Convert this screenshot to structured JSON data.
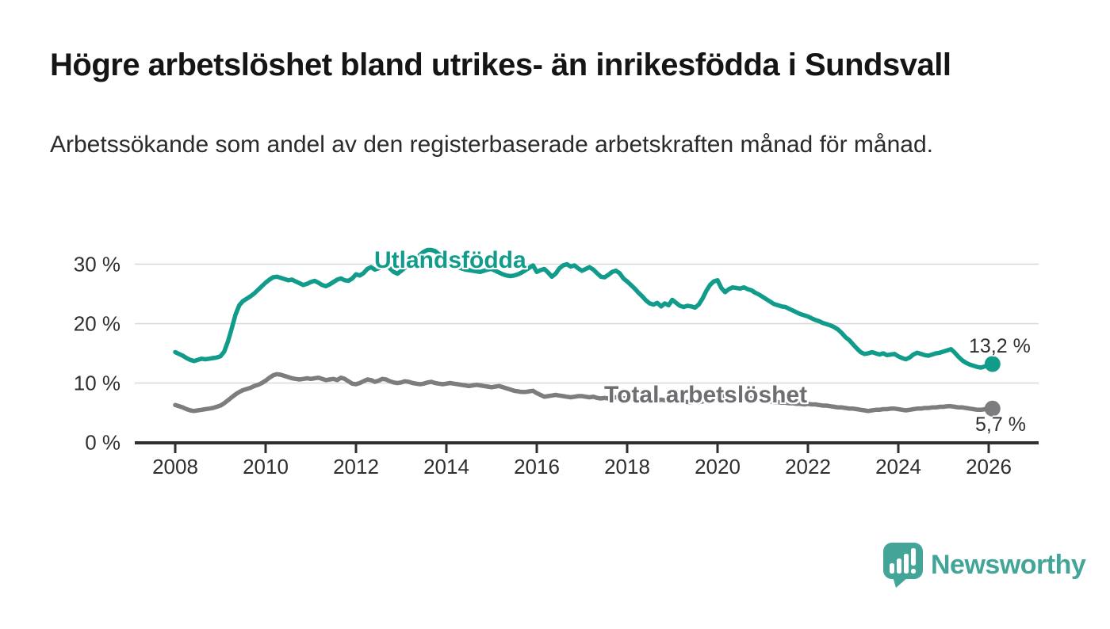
{
  "header": {
    "title": "Högre arbetslöshet bland utrikes- än inrikesfödda i Sundsvall",
    "subtitle": "Arbetssökande som andel av den registerbaserade arbetskraften månad för månad."
  },
  "footer": {
    "brand": "Newsworthy"
  },
  "colors": {
    "accent_teal": "#119b8b",
    "series_gray": "#7d7d80",
    "label_gray": "#6d6d72",
    "grid": "#d8d8d8",
    "axis": "#2f2f2f",
    "axis_text": "#2f2f2f",
    "logo_teal": "#42a597"
  },
  "chart_data": {
    "type": "line",
    "title": "Högre arbetslöshet bland utrikes- än inrikesfödda i Sundsvall",
    "subtitle": "Arbetssökande som andel av den registerbaserade arbetskraften månad för månad.",
    "x_unit": "year-month",
    "x_start_year": 2008,
    "points_per_year": 12,
    "grid": true,
    "legend_position": "inline-labels",
    "x_axis": {
      "ticks": [
        2008,
        2010,
        2012,
        2014,
        2016,
        2018,
        2020,
        2022,
        2024,
        2026
      ]
    },
    "y_axis": {
      "ticks": [
        0,
        10,
        20,
        30
      ],
      "suffix": " %",
      "range": [
        0,
        33.5
      ]
    },
    "series": [
      {
        "name": "Utlandsfödda",
        "color": "#119b8b",
        "end_label": "13,2 %",
        "end_value": 13.2,
        "values": [
          15.2,
          14.9,
          14.6,
          14.2,
          13.9,
          13.7,
          13.9,
          14.1,
          14.0,
          14.1,
          14.2,
          14.3,
          14.5,
          15.3,
          17.0,
          19.2,
          21.5,
          23.1,
          23.8,
          24.2,
          24.6,
          25.1,
          25.7,
          26.3,
          26.9,
          27.4,
          27.8,
          27.9,
          27.7,
          27.5,
          27.3,
          27.4,
          27.1,
          26.8,
          26.5,
          26.7,
          27.0,
          27.2,
          26.9,
          26.5,
          26.3,
          26.6,
          27.0,
          27.4,
          27.6,
          27.3,
          27.2,
          27.6,
          28.3,
          28.1,
          28.5,
          29.2,
          29.5,
          29.1,
          29.3,
          29.7,
          30.0,
          29.3,
          28.7,
          28.4,
          28.9,
          29.4,
          29.9,
          30.5,
          31.0,
          31.6,
          32.1,
          32.4,
          32.4,
          32.2,
          31.7,
          31.1,
          30.6,
          30.2,
          29.8,
          29.5,
          29.3,
          29.1,
          29.0,
          28.9,
          28.8,
          28.7,
          28.9,
          29.1,
          29.2,
          28.9,
          28.6,
          28.3,
          28.1,
          28.0,
          28.1,
          28.3,
          28.6,
          29.0,
          29.4,
          29.8,
          28.7,
          29.0,
          29.2,
          28.6,
          27.9,
          28.4,
          29.3,
          29.8,
          30.0,
          29.6,
          29.8,
          29.3,
          28.9,
          29.2,
          29.5,
          29.1,
          28.5,
          27.9,
          27.8,
          28.2,
          28.7,
          28.9,
          28.5,
          27.6,
          27.1,
          26.5,
          25.9,
          25.2,
          24.6,
          23.9,
          23.4,
          23.2,
          23.5,
          22.9,
          23.4,
          23.1,
          24.0,
          23.5,
          23.0,
          22.8,
          23.0,
          22.9,
          22.7,
          23.2,
          24.2,
          25.5,
          26.5,
          27.1,
          27.3,
          26.0,
          25.3,
          25.8,
          26.1,
          26.0,
          25.9,
          26.1,
          25.8,
          25.6,
          25.2,
          24.9,
          24.5,
          24.1,
          23.7,
          23.3,
          23.1,
          22.9,
          22.8,
          22.5,
          22.2,
          21.9,
          21.6,
          21.4,
          21.2,
          20.9,
          20.6,
          20.4,
          20.1,
          19.9,
          19.7,
          19.4,
          19.0,
          18.4,
          17.7,
          17.2,
          16.5,
          15.8,
          15.2,
          14.9,
          15.0,
          15.2,
          15.0,
          14.8,
          15.0,
          14.7,
          14.8,
          14.9,
          14.5,
          14.2,
          14.0,
          14.3,
          14.8,
          15.1,
          14.9,
          14.7,
          14.6,
          14.8,
          15.0,
          15.1,
          15.3,
          15.5,
          15.7,
          15.1,
          14.4,
          13.8,
          13.4,
          13.1,
          12.9,
          12.7,
          12.6,
          12.8,
          12.9,
          13.2
        ]
      },
      {
        "name": "Total arbetslöshet",
        "color": "#7d7d80",
        "end_label": "5,7 %",
        "end_value": 5.7,
        "values": [
          6.3,
          6.1,
          5.9,
          5.6,
          5.4,
          5.3,
          5.4,
          5.5,
          5.6,
          5.7,
          5.8,
          6.0,
          6.2,
          6.6,
          7.1,
          7.6,
          8.1,
          8.5,
          8.8,
          9.0,
          9.2,
          9.5,
          9.7,
          10.0,
          10.4,
          10.9,
          11.3,
          11.5,
          11.4,
          11.2,
          11.0,
          10.8,
          10.7,
          10.6,
          10.7,
          10.8,
          10.7,
          10.8,
          10.9,
          10.7,
          10.5,
          10.6,
          10.7,
          10.5,
          10.9,
          10.7,
          10.3,
          9.9,
          9.8,
          10.0,
          10.3,
          10.6,
          10.5,
          10.2,
          10.4,
          10.7,
          10.6,
          10.3,
          10.1,
          10.0,
          10.1,
          10.3,
          10.2,
          10.0,
          9.9,
          9.8,
          9.9,
          10.1,
          10.2,
          10.0,
          9.9,
          9.8,
          9.9,
          10.0,
          9.9,
          9.8,
          9.7,
          9.6,
          9.5,
          9.6,
          9.7,
          9.6,
          9.5,
          9.4,
          9.3,
          9.4,
          9.5,
          9.3,
          9.1,
          8.9,
          8.7,
          8.6,
          8.5,
          8.5,
          8.6,
          8.7,
          8.3,
          8.0,
          7.7,
          7.8,
          7.9,
          8.0,
          7.9,
          7.8,
          7.7,
          7.6,
          7.7,
          7.8,
          7.8,
          7.7,
          7.6,
          7.7,
          7.5,
          7.4,
          7.5,
          7.4,
          7.5,
          7.6,
          7.5,
          7.4,
          7.5,
          7.4,
          7.3,
          7.3,
          7.2,
          7.1,
          7.1,
          7.0,
          7.1,
          7.2,
          7.1,
          7.0,
          7.1,
          7.0,
          6.9,
          6.9,
          6.8,
          6.8,
          6.9,
          6.8,
          6.9,
          7.0,
          7.2,
          7.4,
          7.6,
          7.7,
          7.8,
          7.9,
          7.9,
          7.8,
          7.7,
          7.6,
          7.5,
          7.4,
          7.3,
          7.1,
          7.0,
          6.9,
          6.9,
          6.8,
          6.8,
          6.7,
          6.7,
          6.6,
          6.6,
          6.5,
          6.5,
          6.4,
          6.5,
          6.4,
          6.4,
          6.3,
          6.2,
          6.2,
          6.1,
          6.0,
          5.9,
          5.9,
          5.8,
          5.7,
          5.7,
          5.6,
          5.5,
          5.4,
          5.3,
          5.4,
          5.5,
          5.5,
          5.6,
          5.6,
          5.7,
          5.7,
          5.6,
          5.5,
          5.4,
          5.5,
          5.6,
          5.7,
          5.7,
          5.8,
          5.8,
          5.9,
          5.9,
          6.0,
          6.0,
          6.1,
          6.1,
          6.0,
          5.9,
          5.9,
          5.8,
          5.7,
          5.6,
          5.5,
          5.5,
          5.6,
          5.6,
          5.7
        ]
      }
    ]
  }
}
